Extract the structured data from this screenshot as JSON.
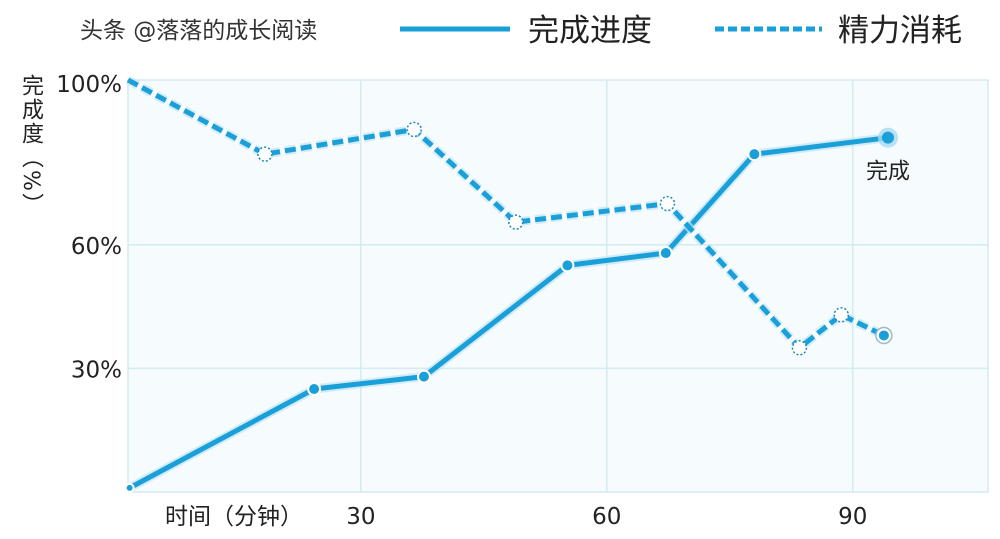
{
  "chart_data": {
    "type": "line",
    "title": "",
    "xlabel": "时间（分钟）",
    "ylabel": "完成度（%）",
    "xlim": [
      1.6,
      106.5
    ],
    "ylim": [
      0,
      100
    ],
    "x_ticks": [
      30,
      60,
      90
    ],
    "x_tick_labels": [
      "30",
      "60",
      "90"
    ],
    "y_ticks": [
      100,
      60,
      30
    ],
    "y_tick_labels": [
      "100%",
      "60%",
      "30%"
    ],
    "grid": true,
    "legend_position": "top-right",
    "series": [
      {
        "name": "完成进度",
        "style": "solid",
        "color": "#1a9fd8",
        "x": [
          1.8,
          24.3,
          37.7,
          55.2,
          67.2,
          78.0,
          94.3
        ],
        "y": [
          1,
          25,
          28,
          55,
          58,
          82,
          86
        ]
      },
      {
        "name": "精力消耗",
        "style": "dashed",
        "color": "#1a9fd8",
        "x": [
          1.6,
          18.3,
          36.5,
          48.9,
          67.4,
          83.5,
          88.6,
          93.8
        ],
        "y": [
          100,
          82,
          88,
          65.5,
          70,
          35,
          43,
          38
        ]
      }
    ],
    "annotations": [
      {
        "text": "完成",
        "series": 0,
        "point": 6
      }
    ]
  },
  "watermark": "头条 @落落的成长阅读"
}
